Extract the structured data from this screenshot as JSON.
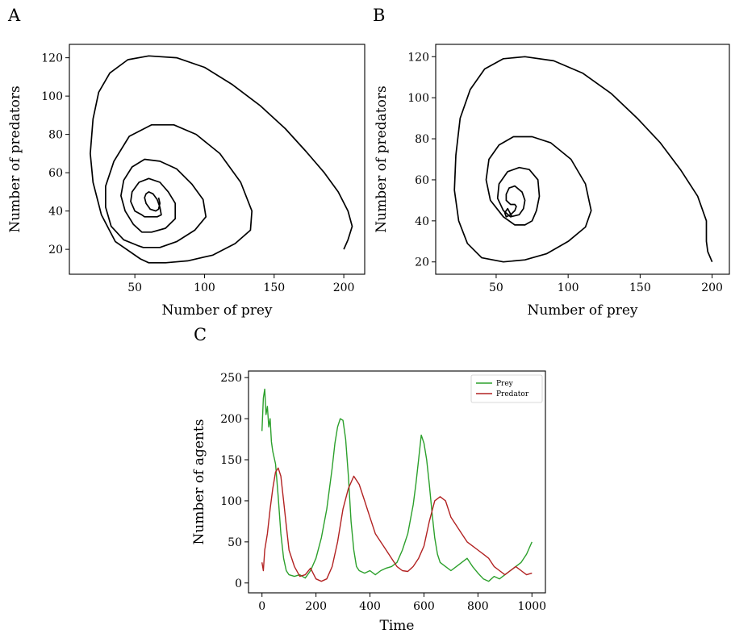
{
  "chart_data": [
    {
      "panel": "A",
      "type": "line",
      "title": "",
      "xlabel": "Number of prey",
      "ylabel": "Number of predators",
      "xlim": [
        3,
        215
      ],
      "ylim": [
        7,
        127
      ],
      "xticks": [
        50,
        100,
        150,
        200
      ],
      "yticks": [
        20,
        40,
        60,
        80,
        100,
        120
      ],
      "grid": false,
      "series": [
        {
          "color": "#000000",
          "x": [
            200,
            203,
            206,
            203,
            196,
            186,
            173,
            158,
            140,
            120,
            100,
            80,
            60,
            45,
            32,
            24,
            20,
            18,
            20,
            26,
            36,
            54,
            60,
            72,
            88,
            106,
            122,
            133,
            134,
            126,
            111,
            94,
            78,
            62,
            46,
            35,
            29,
            29,
            33,
            42,
            52,
            56,
            68,
            80,
            93,
            101,
            99,
            91,
            80,
            68,
            57,
            48,
            42,
            40,
            43,
            49,
            55,
            56,
            62,
            72,
            79,
            79,
            74,
            68,
            60,
            53,
            48,
            47,
            50,
            55,
            57,
            62,
            66,
            69,
            68,
            66,
            63,
            60,
            58,
            57,
            58,
            61,
            65,
            67,
            68,
            67
          ],
          "y": [
            20,
            25,
            32,
            40,
            50,
            60,
            71,
            83,
            95,
            106,
            115,
            120,
            121,
            119,
            112,
            102,
            88,
            70,
            55,
            38,
            24,
            15,
            13,
            13,
            14,
            17,
            23,
            30,
            40,
            55,
            70,
            80,
            85,
            85,
            79,
            66,
            53,
            42,
            32,
            25,
            22,
            21,
            21,
            24,
            30,
            37,
            46,
            54,
            62,
            66,
            67,
            63,
            56,
            48,
            40,
            33,
            29,
            29,
            29,
            31,
            36,
            44,
            50,
            55,
            57,
            55,
            50,
            45,
            40,
            38,
            37,
            37,
            37,
            38,
            42,
            46,
            49,
            50,
            49,
            47,
            44,
            41,
            40,
            41,
            44,
            47
          ]
        }
      ]
    },
    {
      "panel": "B",
      "type": "line",
      "title": "",
      "xlabel": "Number of prey",
      "ylabel": "Number of predators",
      "xlim": [
        8,
        212
      ],
      "ylim": [
        14,
        126
      ],
      "xticks": [
        50,
        100,
        150,
        200
      ],
      "yticks": [
        20,
        40,
        60,
        80,
        100,
        120
      ],
      "grid": false,
      "series": [
        {
          "color": "#000000",
          "x": [
            200,
            197,
            196,
            196,
            190,
            178,
            164,
            148,
            130,
            110,
            90,
            70,
            55,
            42,
            32,
            25,
            22,
            21,
            24,
            30,
            40,
            55,
            70,
            85,
            100,
            112,
            116,
            112,
            102,
            88,
            75,
            62,
            52,
            45,
            43,
            46,
            55,
            63,
            70,
            75,
            78,
            80,
            79,
            73,
            66,
            58,
            52,
            51,
            55,
            60,
            66,
            69,
            70,
            68,
            63,
            59,
            57,
            57,
            60,
            63,
            64,
            63,
            60,
            57,
            56,
            58,
            61
          ],
          "y": [
            20,
            25,
            30,
            40,
            52,
            65,
            78,
            90,
            102,
            112,
            118,
            120,
            119,
            114,
            104,
            90,
            72,
            55,
            40,
            29,
            22,
            20,
            21,
            24,
            30,
            37,
            45,
            58,
            70,
            78,
            81,
            81,
            77,
            70,
            60,
            50,
            42,
            38,
            38,
            40,
            45,
            52,
            60,
            65,
            66,
            64,
            58,
            51,
            45,
            42,
            43,
            46,
            50,
            54,
            57,
            56,
            53,
            50,
            48,
            48,
            47,
            45,
            43,
            42,
            44,
            46,
            42
          ]
        }
      ]
    },
    {
      "panel": "C",
      "type": "line",
      "title": "",
      "xlabel": "Time",
      "ylabel": "Number of agents",
      "xlim": [
        -50,
        1050
      ],
      "ylim": [
        -12,
        258
      ],
      "xticks": [
        0,
        200,
        400,
        600,
        800,
        1000
      ],
      "yticks": [
        0,
        50,
        100,
        150,
        200,
        250
      ],
      "grid": false,
      "legend_position": "top-right",
      "series": [
        {
          "name": "Prey",
          "color": "#2ca02c",
          "x": [
            0,
            5,
            10,
            15,
            20,
            25,
            30,
            35,
            40,
            50,
            60,
            70,
            80,
            90,
            100,
            120,
            140,
            160,
            180,
            200,
            220,
            240,
            260,
            270,
            280,
            290,
            300,
            310,
            320,
            330,
            340,
            350,
            360,
            380,
            400,
            420,
            440,
            460,
            480,
            500,
            520,
            540,
            560,
            570,
            580,
            590,
            600,
            610,
            620,
            630,
            640,
            650,
            660,
            680,
            700,
            720,
            740,
            760,
            780,
            800,
            820,
            840,
            860,
            880,
            900,
            920,
            940,
            960,
            980,
            1000
          ],
          "y": [
            185,
            225,
            236,
            205,
            215,
            190,
            200,
            172,
            160,
            145,
            105,
            60,
            30,
            15,
            10,
            8,
            10,
            6,
            15,
            30,
            55,
            90,
            140,
            170,
            190,
            200,
            198,
            175,
            130,
            75,
            40,
            20,
            15,
            12,
            15,
            10,
            15,
            18,
            20,
            25,
            40,
            60,
            95,
            120,
            150,
            180,
            170,
            150,
            120,
            85,
            55,
            35,
            25,
            20,
            15,
            20,
            25,
            30,
            20,
            12,
            5,
            2,
            8,
            5,
            10,
            15,
            20,
            25,
            35,
            50
          ]
        },
        {
          "name": "Predator",
          "color": "#b22222",
          "x": [
            0,
            5,
            10,
            20,
            30,
            40,
            50,
            60,
            70,
            80,
            90,
            100,
            120,
            140,
            160,
            180,
            200,
            220,
            240,
            260,
            280,
            300,
            320,
            340,
            360,
            380,
            400,
            420,
            440,
            460,
            480,
            500,
            520,
            540,
            560,
            580,
            600,
            620,
            640,
            660,
            680,
            700,
            720,
            740,
            760,
            780,
            800,
            820,
            840,
            860,
            880,
            900,
            920,
            940,
            960,
            980,
            1000
          ],
          "y": [
            25,
            15,
            40,
            60,
            90,
            115,
            135,
            140,
            130,
            100,
            70,
            40,
            20,
            8,
            10,
            18,
            5,
            2,
            5,
            20,
            50,
            90,
            115,
            130,
            120,
            100,
            80,
            60,
            50,
            40,
            30,
            20,
            15,
            14,
            20,
            30,
            45,
            75,
            100,
            105,
            100,
            80,
            70,
            60,
            50,
            45,
            40,
            35,
            30,
            20,
            15,
            10,
            15,
            20,
            15,
            10,
            12
          ]
        }
      ]
    }
  ],
  "panel_labels": [
    "A",
    "B",
    "C"
  ]
}
